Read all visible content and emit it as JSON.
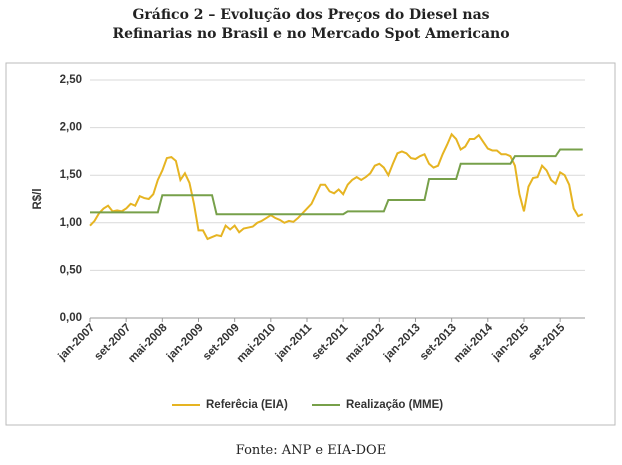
{
  "chart_data": {
    "type": "line",
    "title": "Gráfico 2 – Evolução dos Preços do Diesel nas Refinarias no Brasil e no Mercado Spot Americano",
    "y_label": "R$/l",
    "source": "Fonte: ANP e EIA-DOE",
    "categories": [
      "jan-2007",
      null,
      null,
      null,
      null,
      null,
      null,
      null,
      "set-2007",
      null,
      null,
      null,
      null,
      null,
      null,
      null,
      "mai-2008",
      null,
      null,
      null,
      null,
      null,
      null,
      null,
      "jan-2009",
      null,
      null,
      null,
      null,
      null,
      null,
      null,
      "set-2009",
      null,
      null,
      null,
      null,
      null,
      null,
      null,
      "mai-2010",
      null,
      null,
      null,
      null,
      null,
      null,
      null,
      "jan-2011",
      null,
      null,
      null,
      null,
      null,
      null,
      null,
      "set-2011",
      null,
      null,
      null,
      null,
      null,
      null,
      null,
      "mai-2012",
      null,
      null,
      null,
      null,
      null,
      null,
      null,
      "jan-2013",
      null,
      null,
      null,
      null,
      null,
      null,
      null,
      "set-2013",
      null,
      null,
      null,
      null,
      null,
      null,
      null,
      "mai-2014",
      null,
      null,
      null,
      null,
      null,
      null,
      null,
      "jan-2015",
      null,
      null,
      null,
      null,
      null,
      null,
      null,
      "set-2015",
      null,
      null,
      null,
      null,
      null
    ],
    "series": [
      {
        "name": "Referêcia (EIA)",
        "color": "#e6b422",
        "values": [
          0.97,
          1.02,
          1.1,
          1.15,
          1.18,
          1.12,
          1.13,
          1.12,
          1.15,
          1.2,
          1.18,
          1.28,
          1.26,
          1.25,
          1.3,
          1.45,
          1.55,
          1.68,
          1.69,
          1.65,
          1.45,
          1.52,
          1.42,
          1.2,
          0.92,
          0.92,
          0.83,
          0.85,
          0.87,
          0.86,
          0.97,
          0.93,
          0.97,
          0.9,
          0.94,
          0.95,
          0.96,
          1.0,
          1.02,
          1.05,
          1.08,
          1.05,
          1.03,
          1.0,
          1.02,
          1.01,
          1.05,
          1.1,
          1.15,
          1.2,
          1.3,
          1.4,
          1.4,
          1.33,
          1.31,
          1.35,
          1.3,
          1.4,
          1.45,
          1.48,
          1.45,
          1.48,
          1.52,
          1.6,
          1.62,
          1.58,
          1.5,
          1.62,
          1.73,
          1.75,
          1.73,
          1.68,
          1.67,
          1.7,
          1.72,
          1.62,
          1.58,
          1.6,
          1.72,
          1.82,
          1.93,
          1.88,
          1.77,
          1.8,
          1.88,
          1.88,
          1.92,
          1.85,
          1.78,
          1.76,
          1.76,
          1.72,
          1.72,
          1.7,
          1.6,
          1.3,
          1.12,
          1.38,
          1.47,
          1.48,
          1.6,
          1.55,
          1.45,
          1.41,
          1.53,
          1.5,
          1.4,
          1.15,
          1.07,
          1.09
        ]
      },
      {
        "name": "Realização (MME)",
        "color": "#77a04a",
        "values": [
          1.11,
          1.11,
          1.11,
          1.11,
          1.11,
          1.11,
          1.11,
          1.11,
          1.11,
          1.11,
          1.11,
          1.11,
          1.11,
          1.11,
          1.11,
          1.11,
          1.29,
          1.29,
          1.29,
          1.29,
          1.29,
          1.29,
          1.29,
          1.29,
          1.29,
          1.29,
          1.29,
          1.29,
          1.09,
          1.09,
          1.09,
          1.09,
          1.09,
          1.09,
          1.09,
          1.09,
          1.09,
          1.09,
          1.09,
          1.09,
          1.09,
          1.09,
          1.09,
          1.09,
          1.09,
          1.09,
          1.09,
          1.09,
          1.09,
          1.09,
          1.09,
          1.09,
          1.09,
          1.09,
          1.09,
          1.09,
          1.09,
          1.12,
          1.12,
          1.12,
          1.12,
          1.12,
          1.12,
          1.12,
          1.12,
          1.12,
          1.24,
          1.24,
          1.24,
          1.24,
          1.24,
          1.24,
          1.24,
          1.24,
          1.24,
          1.46,
          1.46,
          1.46,
          1.46,
          1.46,
          1.46,
          1.46,
          1.62,
          1.62,
          1.62,
          1.62,
          1.62,
          1.62,
          1.62,
          1.62,
          1.62,
          1.62,
          1.62,
          1.62,
          1.7,
          1.7,
          1.7,
          1.7,
          1.7,
          1.7,
          1.7,
          1.7,
          1.7,
          1.7,
          1.77,
          1.77,
          1.77,
          1.77,
          1.77,
          1.77
        ]
      }
    ],
    "ylim": [
      0,
      2.5
    ],
    "yticks": [
      {
        "value": 0,
        "label": "0,00"
      },
      {
        "value": 0.5,
        "label": "0,50"
      },
      {
        "value": 1,
        "label": "1,00"
      },
      {
        "value": 1.5,
        "label": "1,50"
      },
      {
        "value": 2,
        "label": "2,00"
      },
      {
        "value": 2.5,
        "label": "2,50"
      }
    ],
    "grid": true
  }
}
